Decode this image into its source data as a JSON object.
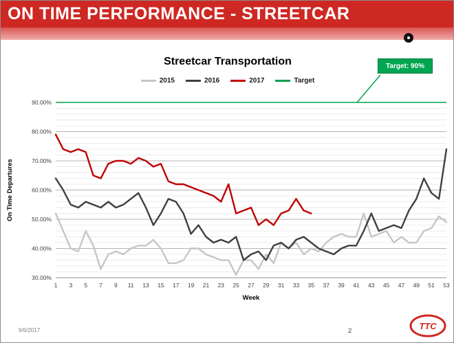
{
  "slide": {
    "header_title": "ON TIME PERFORMANCE - STREETCAR",
    "footer_date": "9/6/2017",
    "page_number": "2"
  },
  "theme": {
    "header_red": "#ce2823",
    "strip_red_top": "#d95551",
    "strip_red_bottom": "#f2aca9",
    "footer_gray": "#7f7f7f"
  },
  "chart_data": {
    "type": "line",
    "title": "Streetcar Transportation",
    "xlabel": "Week",
    "ylabel": "On Time Departures",
    "ylim": [
      30,
      90
    ],
    "x_count": 53,
    "grid_minor_step": 2,
    "grid_major_step": 10,
    "grid": true,
    "legend_position": "top",
    "y_ticks": [
      {
        "value": 90,
        "label": "90.00%"
      },
      {
        "value": 80,
        "label": "80.00%"
      },
      {
        "value": 70,
        "label": "70.00%"
      },
      {
        "value": 60,
        "label": "60.00%"
      },
      {
        "value": 50,
        "label": "50.00%"
      },
      {
        "value": 40,
        "label": "40.00%"
      },
      {
        "value": 30,
        "label": "30.00%"
      }
    ],
    "x_ticks": [
      1,
      3,
      5,
      7,
      9,
      11,
      13,
      15,
      17,
      19,
      21,
      23,
      25,
      27,
      29,
      31,
      33,
      35,
      37,
      39,
      41,
      43,
      45,
      47,
      49,
      51,
      53
    ],
    "target_value": 90,
    "target_callout": {
      "label": "Target: 90%",
      "fill": "#00a651",
      "border": "#007a35"
    },
    "legend": [
      {
        "label": "2015",
        "color": "#c6c6c6"
      },
      {
        "label": "2016",
        "color": "#3f3f3f"
      },
      {
        "label": "2017",
        "color": "#c00000"
      },
      {
        "label": "Target",
        "color": "#00a14b"
      }
    ],
    "series": [
      {
        "name": "2015",
        "color": "#c6c6c6",
        "values": [
          52,
          46,
          40,
          39,
          46,
          41,
          33,
          38,
          39,
          38,
          40,
          41,
          41,
          43,
          40,
          35,
          35,
          36,
          40,
          40,
          38,
          37,
          36,
          36,
          31,
          36,
          36,
          33,
          38,
          35,
          42,
          40,
          42,
          38,
          40,
          39,
          42,
          44,
          45,
          44,
          44,
          52,
          44,
          45,
          46,
          42,
          44,
          42,
          42,
          46,
          47,
          51,
          49
        ]
      },
      {
        "name": "2016",
        "color": "#3f3f3f",
        "values": [
          64,
          60,
          55,
          54,
          56,
          55,
          54,
          56,
          54,
          55,
          57,
          59,
          54,
          48,
          52,
          57,
          56,
          52,
          45,
          48,
          44,
          42,
          43,
          42,
          44,
          36,
          38,
          39,
          36,
          41,
          42,
          40,
          43,
          44,
          42,
          40,
          39,
          38,
          40,
          41,
          41,
          46,
          52,
          46,
          47,
          48,
          47,
          53,
          57,
          64,
          59,
          57,
          74
        ]
      },
      {
        "name": "2017",
        "color": "#c00000",
        "values": [
          79,
          74,
          73,
          74,
          73,
          65,
          64,
          69,
          70,
          70,
          69,
          71,
          70,
          68,
          69,
          63,
          62,
          62,
          61,
          60,
          59,
          58,
          56,
          62,
          52,
          53,
          54,
          48,
          50,
          48,
          52,
          53,
          57,
          53,
          52
        ]
      }
    ]
  }
}
